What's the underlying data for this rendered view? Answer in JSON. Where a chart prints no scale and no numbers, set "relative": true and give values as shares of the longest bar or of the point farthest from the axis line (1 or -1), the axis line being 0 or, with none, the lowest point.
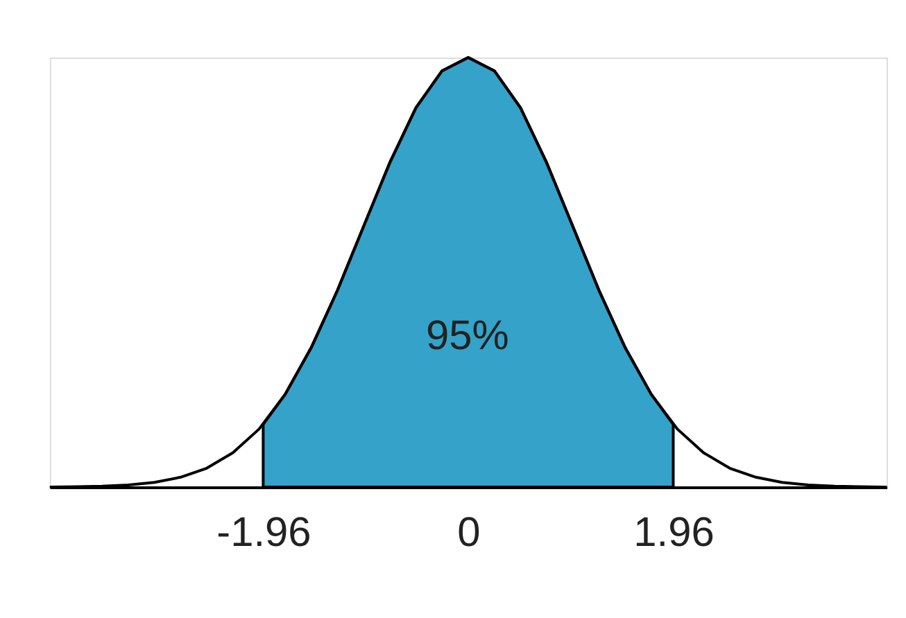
{
  "chart_data": {
    "type": "line",
    "relative": true,
    "xlim": [
      -4,
      4
    ],
    "xticks": [
      -1.96,
      0,
      1.96
    ],
    "grid": false,
    "marker": "none",
    "line_style": "solid",
    "series": [
      {
        "type": "area",
        "color": "#35a2c9",
        "x": [
          -1.96,
          -1.75,
          -1.5,
          -1.25,
          -1,
          -0.75,
          -0.5,
          -0.25,
          0,
          0.25,
          0.5,
          0.75,
          1,
          1.25,
          1.5,
          1.75,
          1.96
        ],
        "values": [
          0.146,
          0.216,
          0.325,
          0.458,
          0.607,
          0.755,
          0.883,
          0.969,
          1,
          0.969,
          0.883,
          0.755,
          0.607,
          0.458,
          0.325,
          0.216,
          0.146
        ]
      },
      {
        "color": "#000000",
        "x": [
          -4,
          -3.75,
          -3.5,
          -3.25,
          -3,
          -2.75,
          -2.5,
          -2.25,
          -2,
          -1.75,
          -1.5,
          -1.25,
          -1,
          -0.75,
          -0.5,
          -0.25,
          0,
          0.25,
          0.5,
          0.75,
          1,
          1.25,
          1.5,
          1.75,
          2,
          2.25,
          2.5,
          2.75,
          3,
          3.25,
          3.5,
          3.75,
          4
        ],
        "values": [
          0,
          0.001,
          0.002,
          0.005,
          0.011,
          0.023,
          0.044,
          0.08,
          0.135,
          0.216,
          0.325,
          0.458,
          0.607,
          0.755,
          0.883,
          0.969,
          1,
          0.969,
          0.883,
          0.755,
          0.607,
          0.458,
          0.325,
          0.216,
          0.135,
          0.08,
          0.044,
          0.023,
          0.011,
          0.005,
          0.002,
          0.001,
          0
        ]
      }
    ],
    "annotations": [
      "95%"
    ]
  }
}
